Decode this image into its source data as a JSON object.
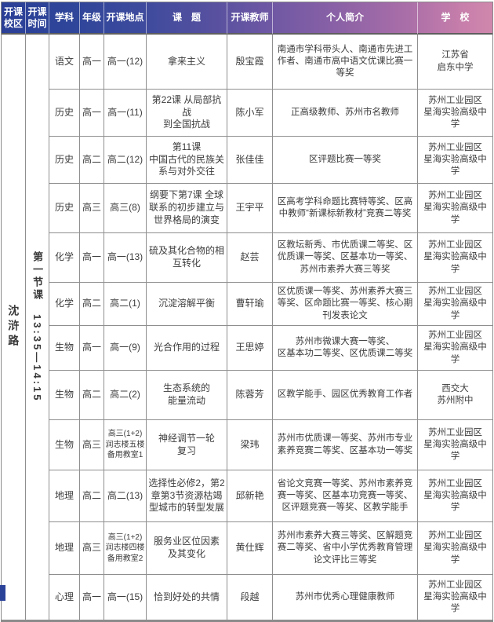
{
  "header": {
    "columns": [
      "开课\n校区",
      "开课\n时间",
      "学科",
      "年级",
      "开课地点",
      "课　题",
      "开课教师",
      "个人简介",
      "学　校"
    ]
  },
  "campus": "沈浒路",
  "session": "第一节课　13:35—14:15",
  "rows": [
    {
      "subject": "语文",
      "grade": "高一",
      "location": "高一(12)",
      "topic": "拿来主义",
      "teacher": "殷宝霞",
      "bio": "南通市学科带头人、南通市先进工作者、南通市高中语文优课比赛一等奖",
      "school": "江苏省\n启东中学"
    },
    {
      "subject": "历史",
      "grade": "高一",
      "location": "高一(11)",
      "topic": "第22课 从局部抗战\n到全国抗战",
      "teacher": "陈小军",
      "bio": "正高级教师、苏州市名教师",
      "school": "苏州工业园区\n星海实验高级中学"
    },
    {
      "subject": "历史",
      "grade": "高二",
      "location": "高二(12)",
      "topic": "第11课\n中国古代的民族关\n系与对外交往",
      "teacher": "张佳佳",
      "bio": "区评题比赛一等奖",
      "school": "苏州工业园区\n星海实验高级中学"
    },
    {
      "subject": "历史",
      "grade": "高三",
      "location": "高三(8)",
      "topic": "纲要下第7课 全球\n联系的初步建立与\n世界格局的演变",
      "teacher": "王宇平",
      "bio": "区高考学科命题比赛特等奖、区高中教师“新课标新教材”竞赛二等奖",
      "school": "苏州工业园区\n星海实验高级中学"
    },
    {
      "subject": "化学",
      "grade": "高一",
      "location": "高一(13)",
      "topic": "硫及其化合物的相\n互转化",
      "teacher": "赵芸",
      "bio": "区教坛新秀、市优质课二等奖、区优质课一等奖、区基本功一等奖、苏州市素养大赛三等奖",
      "school": "苏州工业园区\n星海实验高级中学"
    },
    {
      "subject": "化学",
      "grade": "高二",
      "location": "高二(1)",
      "topic": "沉淀溶解平衡",
      "teacher": "曹轩瑜",
      "bio": "区优质课一等奖、苏州素养大赛三等奖、区命题比赛一等奖、核心期刊发表论文",
      "school": "苏州工业园区\n星海实验高级中学"
    },
    {
      "subject": "生物",
      "grade": "高一",
      "location": "高一(9)",
      "topic": "光合作用的过程",
      "teacher": "王思婷",
      "bio": "苏州市微课大赛一等奖、\n区基本功二等奖、区优质课二等奖",
      "school": "苏州工业园区\n星海实验高级中学"
    },
    {
      "subject": "生物",
      "grade": "高二",
      "location": "高二(2)",
      "topic": "生态系统的\n能量流动",
      "teacher": "陈蓉芳",
      "bio": "区教学能手、园区优秀教育工作者",
      "school": "西交大\n苏州附中"
    },
    {
      "subject": "生物",
      "grade": "高三",
      "location": "高三(1+2)\n润志楼五楼\n备用教室1",
      "topic": "神经调节一轮\n复习",
      "teacher": "梁玮",
      "bio": "苏州市优质课一等奖、苏州市专业素养竞赛二等奖、区基本功一等奖",
      "school": "苏州工业园区\n星海实验高级中学"
    },
    {
      "subject": "地理",
      "grade": "高二",
      "location": "高二(13)",
      "topic": "选择性必修2，第2\n章第3节资源枯竭\n型城市的转型发展",
      "teacher": "邱新艳",
      "bio": "省论文竞赛一等奖、苏州市素养竞赛一等奖、区基本功竞赛一等奖、区评题竞赛一等奖、区教学能手",
      "school": "苏州工业园区\n星海实验高级中学"
    },
    {
      "subject": "地理",
      "grade": "高三",
      "location": "高三(1+2)\n润志楼四楼\n备用教室2",
      "topic": "服务业区位因素\n及其变化",
      "teacher": "黄仕辉",
      "bio": "苏州市素养大赛三等奖、区解题竞赛二等奖、省中小学优秀教育管理论文评比三等奖",
      "school": "苏州工业园区\n星海实验高级中学"
    },
    {
      "subject": "心理",
      "grade": "高一",
      "location": "高一(15)",
      "topic": "恰到好处的共情",
      "teacher": "段越",
      "bio": "苏州市优秀心理健康教师",
      "school": "苏州工业园区\n星海实验高级中学"
    }
  ]
}
